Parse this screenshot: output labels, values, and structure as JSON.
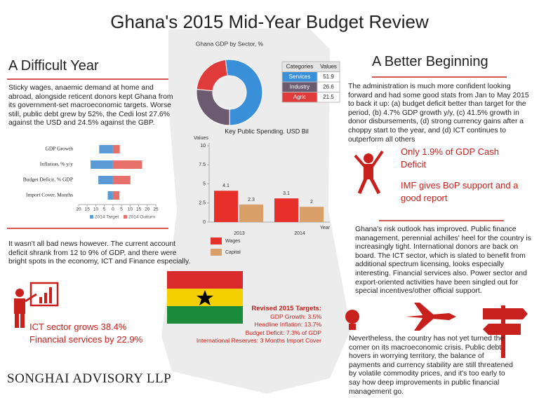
{
  "header": {
    "title": "Ghana's 2015 Mid-Year Budget Review"
  },
  "left": {
    "heading": "A Difficult Year",
    "paragraphs": [
      "Sticky wages, anaemic demand at home and abroad, alongside reticent donors kept Ghana from its government-set macroeconomic targets. Worse still, public debt grew by 52%, the Cedi lost 27.6% against the USD and 24.5% against the GBP.",
      "It wasn't all bad news however. The current account deficit shrank from 12 to 9% of GDP, and there were bright spots in the economy, ICT and Finance especially."
    ],
    "highlights": [
      "ICT sector grows 38.4%",
      "Financial services by 22.9%"
    ]
  },
  "right": {
    "heading": "A Better Beginning",
    "paragraphs": [
      "The administration is much more confident looking forward and had some good stats from Jan to May 2015 to back it up: (a) budget deficit better than target for the period, (b) 4.7% GDP growth y/y, (c) 41.5% growth in donor disbursements, (d) strong currency gains after a choppy start to the year, and (d) ICT continues to outperform all others",
      "Ghana's risk outlook has improved. Public finance management, perennial achilles' heel for the country is increasingly tight. International donors are back on board. The ICT sector, which is slated to benefit from additional spectrum licensing, looks especially interesting. Financial services also. Power sector and export-oriented activities have been singled out for special incentives/other official support.",
      "Nevertheless, the country has not yet turned the corner on its macroeconomic crisis. Public debt hovers in worrying territory, the balance of payments and currency stability are still threatened by volatile commodity prices, and it's too early to say how deep improvements in public financial management go."
    ],
    "callouts": [
      "Only 1.9% of GDP Cash Deficit",
      "IMF gives BoP support and a good report"
    ]
  },
  "targets": {
    "title": "Revised 2015 Targets:",
    "lines": [
      "GDP Growth: 3.5%",
      "Headline Inflation: 13.7%",
      "Budget Deficit: 7.3% of GDP",
      "International Reserves: 3 Months Import Cover"
    ]
  },
  "footer": {
    "logo": "SONGHAI ADVISORY LLP"
  },
  "chart_data": [
    {
      "type": "pie",
      "title": "Ghana GDP by Sector, %",
      "table_header": [
        "Categories",
        "Values"
      ],
      "categories": [
        "Services",
        "Industry",
        "Agric"
      ],
      "values": [
        51.9,
        26.6,
        21.5
      ],
      "colors": [
        "#3a8fd9",
        "#6b5a70",
        "#e03a3a"
      ]
    },
    {
      "type": "bar",
      "horizontal": true,
      "categories": [
        "GDP Growth",
        "Inflation, % y/y",
        "Budget Deficit, % GDP",
        "Import Cover, Months"
      ],
      "series": [
        {
          "name": "2014 Target",
          "color": "#5b9bd5",
          "values": [
            -8,
            -13,
            -8.5,
            -3
          ]
        },
        {
          "name": "2014 Outturn",
          "color": "#e8706a",
          "values": [
            4,
            17,
            10.2,
            3.8
          ]
        }
      ],
      "xlim": [
        -20,
        25
      ],
      "xticks": [
        {
          "value": -20,
          "label": "20"
        },
        {
          "value": -15,
          "label": "15"
        },
        {
          "value": -10,
          "label": "10"
        },
        {
          "value": -5,
          "label": "5"
        },
        0,
        5,
        10,
        15,
        20,
        25
      ]
    },
    {
      "type": "bar",
      "title": "Key Public Spending. USD Bil",
      "y_label": "Values",
      "x_label": "Year",
      "categories": [
        "2013",
        "2014"
      ],
      "series": [
        {
          "name": "Wages",
          "color": "#e8302a",
          "values": [
            4.1,
            3.1
          ]
        },
        {
          "name": "Capital",
          "color": "#d9a06a",
          "values": [
            2.3,
            2.0
          ]
        }
      ],
      "ylim": [
        0,
        10
      ],
      "yticks": [
        0,
        2.5,
        5,
        7.5,
        10
      ]
    }
  ]
}
